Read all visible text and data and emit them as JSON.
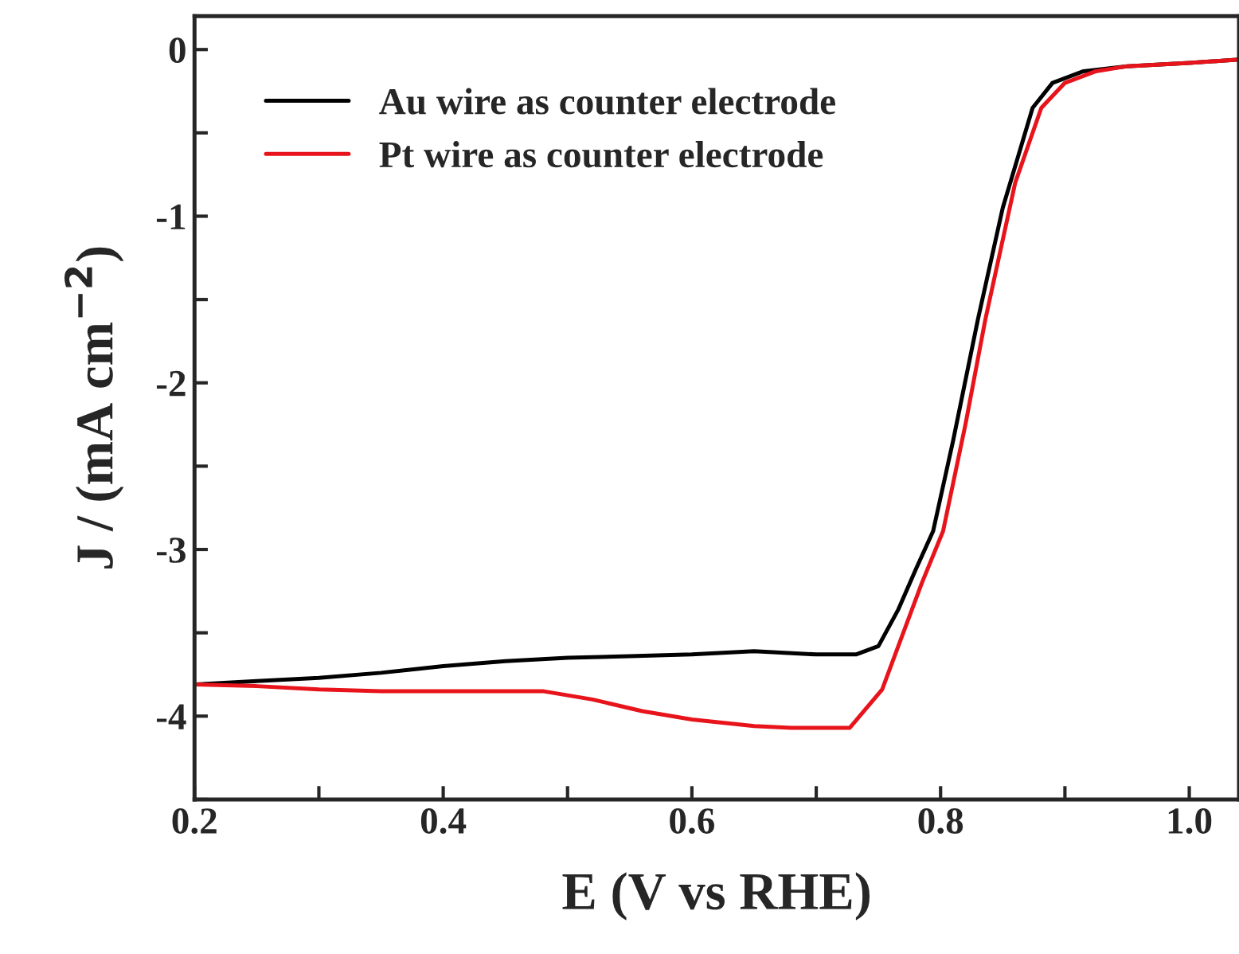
{
  "chart_data": {
    "type": "line",
    "xlabel": "E (V vs RHE)",
    "ylabel": "J / (mA cm$^{−2}$)",
    "xlim": [
      0.2,
      1.04
    ],
    "ylim": [
      -4.5,
      0.2
    ],
    "xticks": [
      {
        "value": 0.2,
        "label": "0.2"
      },
      {
        "value": 0.3,
        "label": null
      },
      {
        "value": 0.4,
        "label": "0.4"
      },
      {
        "value": 0.5,
        "label": null
      },
      {
        "value": 0.6,
        "label": "0.6"
      },
      {
        "value": 0.7,
        "label": null
      },
      {
        "value": 0.8,
        "label": "0.8"
      },
      {
        "value": 0.9,
        "label": null
      },
      {
        "value": 1.0,
        "label": "1.0"
      }
    ],
    "yticks": [
      {
        "value": -4.5,
        "label": null
      },
      -4,
      {
        "value": -3.5,
        "label": null
      },
      -3,
      {
        "value": -2.5,
        "label": null
      },
      -2,
      {
        "value": -1.5,
        "label": null
      },
      -1,
      {
        "value": -0.5,
        "label": null
      },
      0
    ],
    "grid": false,
    "legend": "top left",
    "line_style": "solid",
    "series": [
      {
        "name": "Au wire as counter electrode",
        "color": "#000000",
        "x": [
          0.2,
          0.25,
          0.3,
          0.35,
          0.4,
          0.45,
          0.5,
          0.55,
          0.6,
          0.65,
          0.7,
          0.732,
          0.75,
          0.766,
          0.78,
          0.794,
          0.81,
          0.83,
          0.85,
          0.874,
          0.89,
          0.915,
          0.95,
          1.0,
          1.04
        ],
        "values": [
          -3.81,
          -3.79,
          -3.77,
          -3.74,
          -3.7,
          -3.67,
          -3.65,
          -3.64,
          -3.63,
          -3.61,
          -3.63,
          -3.63,
          -3.58,
          -3.36,
          -3.12,
          -2.89,
          -2.35,
          -1.62,
          -0.95,
          -0.35,
          -0.2,
          -0.13,
          -0.1,
          -0.08,
          -0.06
        ]
      },
      {
        "name": "Pt wire as counter electrode",
        "color": "#e8141b",
        "x": [
          0.2,
          0.25,
          0.3,
          0.35,
          0.4,
          0.45,
          0.48,
          0.52,
          0.56,
          0.6,
          0.65,
          0.68,
          0.727,
          0.753,
          0.77,
          0.785,
          0.802,
          0.82,
          0.836,
          0.86,
          0.881,
          0.9,
          0.925,
          0.95,
          1.0,
          1.04
        ],
        "values": [
          -3.81,
          -3.82,
          -3.84,
          -3.85,
          -3.85,
          -3.85,
          -3.85,
          -3.9,
          -3.97,
          -4.02,
          -4.06,
          -4.07,
          -4.07,
          -3.84,
          -3.5,
          -3.2,
          -2.89,
          -2.25,
          -1.62,
          -0.8,
          -0.35,
          -0.2,
          -0.13,
          -0.1,
          -0.08,
          -0.06
        ]
      }
    ]
  }
}
